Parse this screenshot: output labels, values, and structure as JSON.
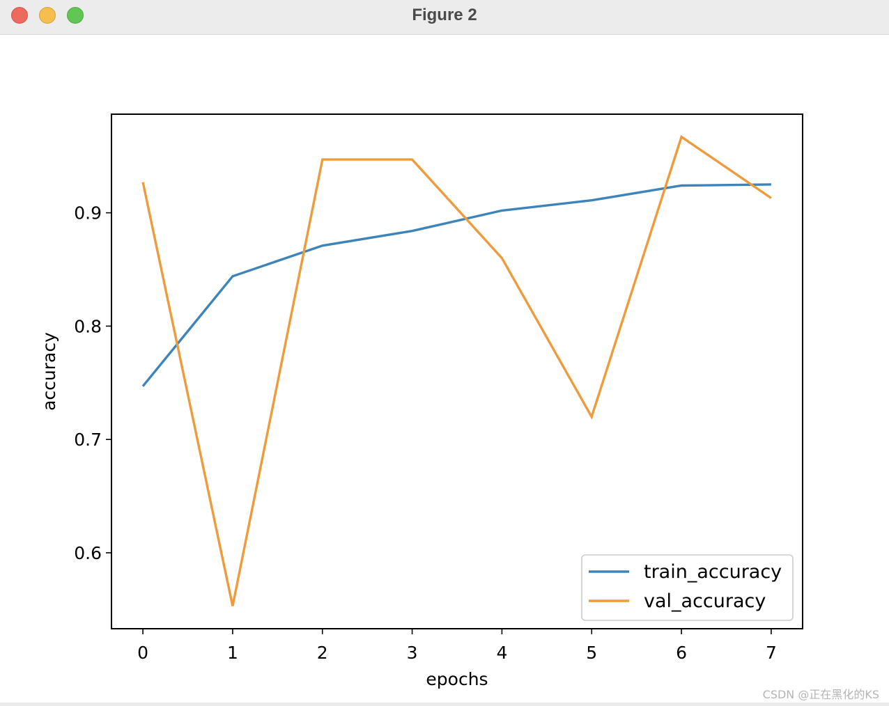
{
  "window": {
    "title": "Figure 2"
  },
  "watermark": "CSDN @正在黑化的KS",
  "chart_data": {
    "type": "line",
    "title": "",
    "xlabel": "epochs",
    "ylabel": "accuracy",
    "x": [
      0,
      1,
      2,
      3,
      4,
      5,
      6,
      7
    ],
    "xlim": [
      -0.35,
      7.35
    ],
    "ylim": [
      0.533,
      0.987
    ],
    "xticks": [
      0,
      1,
      2,
      3,
      4,
      5,
      6,
      7
    ],
    "yticks": [
      0.6,
      0.7,
      0.8,
      0.9
    ],
    "ytick_labels": [
      "0.6",
      "0.7",
      "0.8",
      "0.9"
    ],
    "grid": false,
    "legend_position": "lower-right",
    "series": [
      {
        "name": "train_accuracy",
        "color": "#3d84bb",
        "values": [
          0.747,
          0.844,
          0.871,
          0.884,
          0.902,
          0.911,
          0.924,
          0.925
        ]
      },
      {
        "name": "val_accuracy",
        "color": "#ef9b3b",
        "values": [
          0.927,
          0.553,
          0.947,
          0.947,
          0.86,
          0.72,
          0.967,
          0.913
        ]
      }
    ]
  }
}
